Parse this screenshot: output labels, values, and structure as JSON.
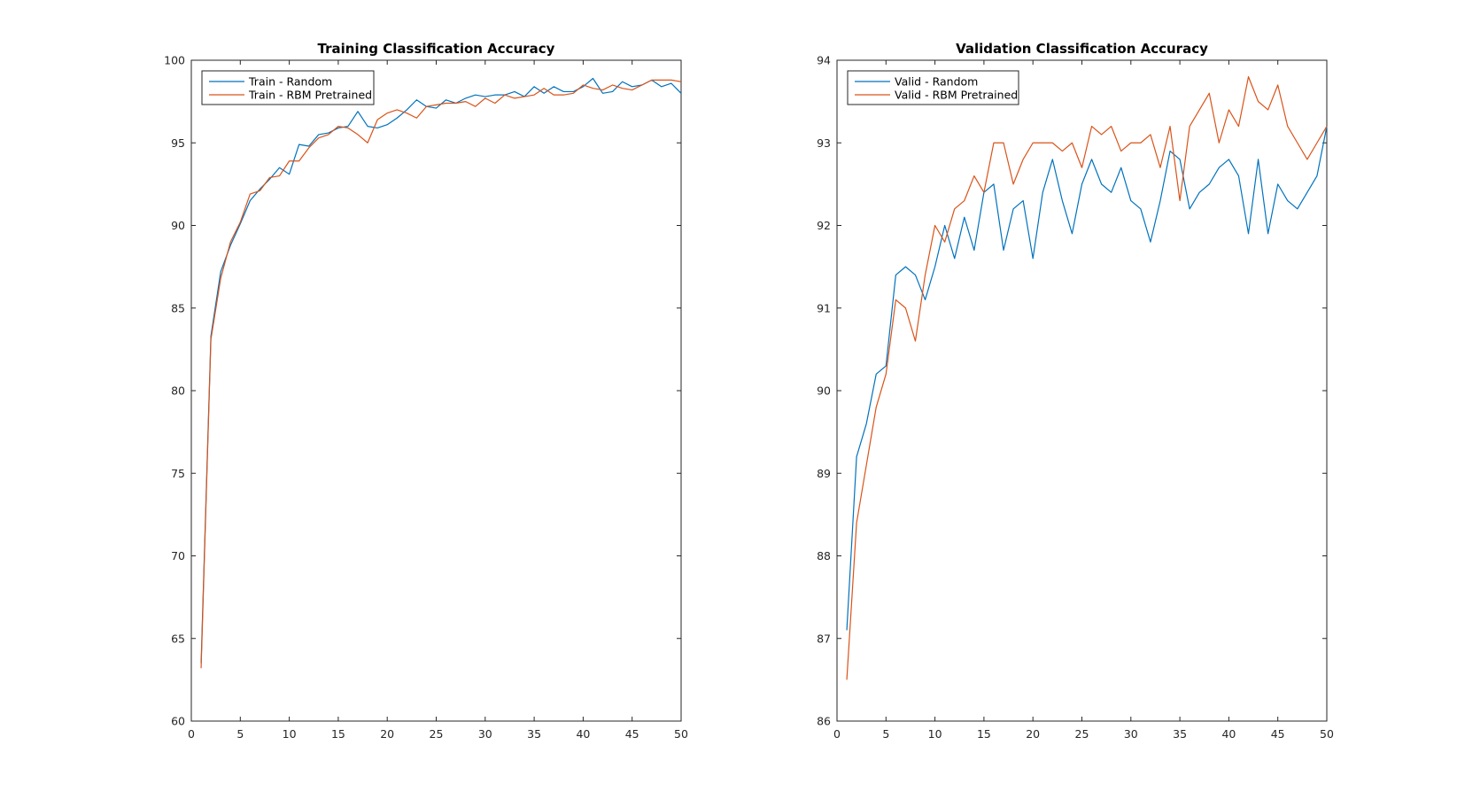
{
  "colors": {
    "series1": "#0072BD",
    "series2": "#D95319",
    "axis": "#262626",
    "background": "#ffffff"
  },
  "chart_data": [
    {
      "type": "line",
      "title": "Training Classification Accuracy",
      "xlabel": "",
      "ylabel": "",
      "xlim": [
        0,
        50
      ],
      "ylim": [
        60,
        100
      ],
      "xticks": [
        0,
        5,
        10,
        15,
        20,
        25,
        30,
        35,
        40,
        45,
        50
      ],
      "yticks": [
        60,
        65,
        70,
        75,
        80,
        85,
        90,
        95,
        100
      ],
      "xtick_labels": [
        "0",
        "5",
        "10",
        "15",
        "20",
        "25",
        "30",
        "35",
        "40",
        "45",
        "50"
      ],
      "ytick_labels": [
        "60",
        "65",
        "70",
        "75",
        "80",
        "85",
        "90",
        "95",
        "100"
      ],
      "grid": false,
      "legend_position": "top-left",
      "x": [
        1,
        2,
        3,
        4,
        5,
        6,
        7,
        8,
        9,
        10,
        11,
        12,
        13,
        14,
        15,
        16,
        17,
        18,
        19,
        20,
        21,
        22,
        23,
        24,
        25,
        26,
        27,
        28,
        29,
        30,
        31,
        32,
        33,
        34,
        35,
        36,
        37,
        38,
        39,
        40,
        41,
        42,
        43,
        44,
        45,
        46,
        47,
        48,
        49,
        50
      ],
      "series": [
        {
          "name": "Train - Random",
          "color": "#0072BD",
          "values": [
            63.5,
            83.3,
            87.2,
            88.8,
            90.1,
            91.5,
            92.2,
            92.8,
            93.5,
            93.1,
            94.9,
            94.8,
            95.5,
            95.6,
            95.9,
            96.0,
            96.9,
            96.0,
            95.9,
            96.1,
            96.5,
            97.0,
            97.6,
            97.2,
            97.1,
            97.6,
            97.4,
            97.7,
            97.9,
            97.8,
            97.9,
            97.9,
            98.1,
            97.8,
            98.4,
            98.0,
            98.4,
            98.1,
            98.1,
            98.4,
            98.9,
            98.0,
            98.1,
            98.7,
            98.4,
            98.5,
            98.8,
            98.4,
            98.6,
            98.0
          ]
        },
        {
          "name": "Train - RBM Pretrained",
          "color": "#D95319",
          "values": [
            63.2,
            83.1,
            86.8,
            89.0,
            90.2,
            91.9,
            92.1,
            92.9,
            93.0,
            93.9,
            93.9,
            94.7,
            95.3,
            95.5,
            96.0,
            95.9,
            95.5,
            95.0,
            96.4,
            96.8,
            97.0,
            96.8,
            96.5,
            97.2,
            97.3,
            97.4,
            97.4,
            97.5,
            97.2,
            97.7,
            97.4,
            97.9,
            97.7,
            97.8,
            97.9,
            98.3,
            97.9,
            97.9,
            98.0,
            98.5,
            98.3,
            98.2,
            98.5,
            98.3,
            98.2,
            98.5,
            98.8,
            98.8,
            98.8,
            98.7
          ]
        }
      ]
    },
    {
      "type": "line",
      "title": "Validation Classification Accuracy",
      "xlabel": "",
      "ylabel": "",
      "xlim": [
        0,
        50
      ],
      "ylim": [
        86,
        94
      ],
      "xticks": [
        0,
        5,
        10,
        15,
        20,
        25,
        30,
        35,
        40,
        45,
        50
      ],
      "yticks": [
        86,
        87,
        88,
        89,
        90,
        91,
        92,
        93,
        94
      ],
      "xtick_labels": [
        "0",
        "5",
        "10",
        "15",
        "20",
        "25",
        "30",
        "35",
        "40",
        "45",
        "50"
      ],
      "ytick_labels": [
        "86",
        "87",
        "88",
        "89",
        "90",
        "91",
        "92",
        "93",
        "94"
      ],
      "grid": false,
      "legend_position": "top-left",
      "x": [
        1,
        2,
        3,
        4,
        5,
        6,
        7,
        8,
        9,
        10,
        11,
        12,
        13,
        14,
        15,
        16,
        17,
        18,
        19,
        20,
        21,
        22,
        23,
        24,
        25,
        26,
        27,
        28,
        29,
        30,
        31,
        32,
        33,
        34,
        35,
        36,
        37,
        38,
        39,
        40,
        41,
        42,
        43,
        44,
        45,
        46,
        47,
        48,
        49,
        50
      ],
      "series": [
        {
          "name": "Valid - Random",
          "color": "#0072BD",
          "values": [
            87.1,
            89.2,
            89.6,
            90.2,
            90.3,
            91.4,
            91.5,
            91.4,
            91.1,
            91.5,
            92.0,
            91.6,
            92.1,
            91.7,
            92.4,
            92.5,
            91.7,
            92.2,
            92.3,
            91.6,
            92.4,
            92.8,
            92.3,
            91.9,
            92.5,
            92.8,
            92.5,
            92.4,
            92.7,
            92.3,
            92.2,
            91.8,
            92.3,
            92.9,
            92.8,
            92.2,
            92.4,
            92.5,
            92.7,
            92.8,
            92.6,
            91.9,
            92.8,
            91.9,
            92.5,
            92.3,
            92.2,
            92.4,
            92.6,
            93.2
          ]
        },
        {
          "name": "Valid - RBM Pretrained",
          "color": "#D95319",
          "values": [
            86.5,
            88.4,
            89.1,
            89.8,
            90.2,
            91.1,
            91.0,
            90.6,
            91.4,
            92.0,
            91.8,
            92.2,
            92.3,
            92.6,
            92.4,
            93.0,
            93.0,
            92.5,
            92.8,
            93.0,
            93.0,
            93.0,
            92.9,
            93.0,
            92.7,
            93.2,
            93.1,
            93.2,
            92.9,
            93.0,
            93.0,
            93.1,
            92.7,
            93.2,
            92.3,
            93.2,
            93.4,
            93.6,
            93.0,
            93.4,
            93.2,
            93.8,
            93.5,
            93.4,
            93.7,
            93.2,
            93.0,
            92.8,
            93.0,
            93.2
          ]
        }
      ]
    }
  ]
}
